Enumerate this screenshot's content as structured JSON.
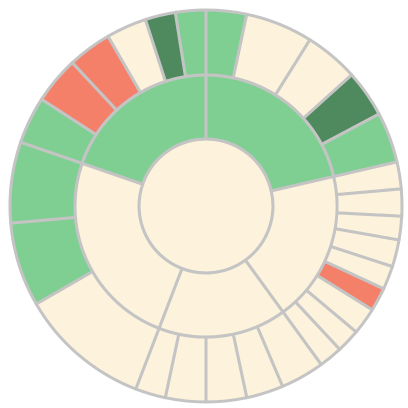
{
  "chart_data": {
    "type": "sunburst",
    "children": [
      {
        "color": "#7fcf92",
        "children": [
          {
            "value": 12,
            "color": "#7fcf92"
          },
          {
            "value": 20,
            "color": "#fdf3dc"
          },
          {
            "value": 16,
            "color": "#fdf3dc"
          },
          {
            "value": 14,
            "color": "#4f8a5e"
          },
          {
            "value": 15,
            "color": "#7fcf92"
          }
        ]
      },
      {
        "color": "#fdf3dc",
        "children": [
          {
            "value": 8,
            "color": "#fdf3dc"
          },
          {
            "value": 8,
            "color": "#fdf3dc"
          },
          {
            "value": 7,
            "color": "#fdf3dc"
          },
          {
            "value": 8,
            "color": "#fdf3dc"
          },
          {
            "value": 7,
            "color": "#fdf3dc"
          },
          {
            "value": 7,
            "color": "#f5806a"
          },
          {
            "value": 8,
            "color": "#fdf3dc"
          },
          {
            "value": 7,
            "color": "#fdf3dc"
          },
          {
            "value": 7,
            "color": "#fdf3dc"
          }
        ]
      },
      {
        "color": "#fdf3dc",
        "children": [
          {
            "value": 13,
            "color": "#fdf3dc"
          },
          {
            "value": 11,
            "color": "#fdf3dc"
          },
          {
            "value": 12,
            "color": "#fdf3dc"
          },
          {
            "value": 12,
            "color": "#fdf3dc"
          },
          {
            "value": 9,
            "color": "#fdf3dc"
          }
        ]
      },
      {
        "color": "#fdf3dc",
        "children": [
          {
            "value": 39,
            "color": "#fdf3dc"
          },
          {
            "value": 25,
            "color": "#7fcf92"
          },
          {
            "value": 24,
            "color": "#7fcf92"
          }
        ]
      },
      {
        "color": "#7fcf92",
        "children": [
          {
            "value": 14,
            "color": "#7fcf92"
          },
          {
            "value": 14,
            "color": "#f5806a"
          },
          {
            "value": 13,
            "color": "#f5806a"
          },
          {
            "value": 12,
            "color": "#fdf3dc"
          },
          {
            "value": 9,
            "color": "#4f8a5e"
          },
          {
            "value": 9,
            "color": "#7fcf92"
          }
        ]
      }
    ]
  }
}
